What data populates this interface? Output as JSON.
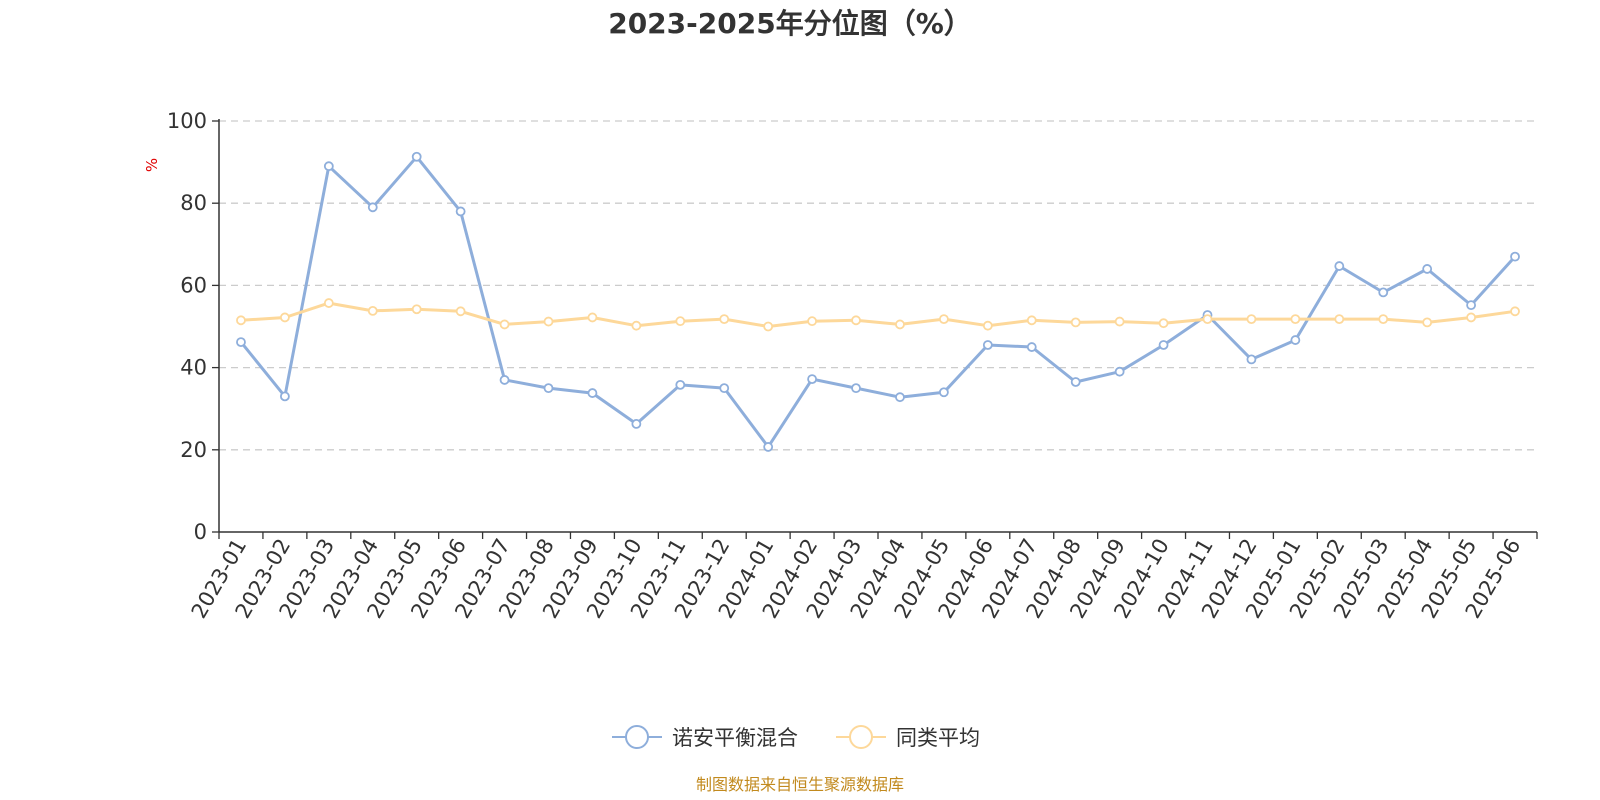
{
  "chart_data": {
    "type": "line",
    "title": "2023-2025年分位图（%）",
    "ylabel": "%",
    "ylim": [
      0,
      100
    ],
    "yticks": [
      0,
      20,
      40,
      60,
      80,
      100
    ],
    "grid": true,
    "legend_position": "bottom-center",
    "categories": [
      "2023-01",
      "2023-02",
      "2023-03",
      "2023-04",
      "2023-05",
      "2023-06",
      "2023-07",
      "2023-08",
      "2023-09",
      "2023-10",
      "2023-11",
      "2023-12",
      "2024-01",
      "2024-02",
      "2024-03",
      "2024-04",
      "2024-05",
      "2024-06",
      "2024-07",
      "2024-08",
      "2024-09",
      "2024-10",
      "2024-11",
      "2024-12",
      "2025-01",
      "2025-02",
      "2025-03",
      "2025-04",
      "2025-05",
      "2025-06"
    ],
    "series": [
      {
        "name": "诺安平衡混合",
        "color": "#8eaedb",
        "values": [
          46.2,
          33.0,
          89.0,
          79.0,
          91.3,
          78.0,
          37.0,
          35.0,
          33.8,
          26.3,
          35.8,
          35.0,
          20.7,
          37.2,
          35.0,
          32.8,
          34.0,
          45.5,
          45.0,
          36.5,
          39.0,
          45.5,
          52.8,
          42.0,
          46.7,
          64.7,
          58.3,
          64.0,
          55.2,
          67.0
        ]
      },
      {
        "name": "同类平均",
        "color": "#fdd89a",
        "values": [
          51.5,
          52.2,
          55.7,
          53.8,
          54.2,
          53.7,
          50.5,
          51.2,
          52.2,
          50.2,
          51.3,
          51.8,
          50.0,
          51.3,
          51.5,
          50.5,
          51.8,
          50.2,
          51.5,
          51.0,
          51.2,
          50.8,
          51.8,
          51.8,
          51.8,
          51.8,
          51.8,
          51.0,
          52.2,
          53.7
        ]
      }
    ],
    "source": "制图数据来自恒生聚源数据库"
  }
}
